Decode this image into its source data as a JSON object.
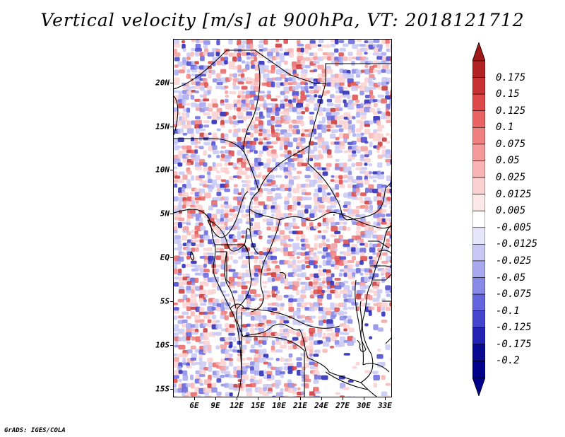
{
  "title": "Vertical velocity [m/s] at 900hPa, VT: 2018121712",
  "footer": "GrADS: IGES/COLA",
  "map": {
    "region": "Central Africa",
    "lon_range_deg": [
      3,
      34
    ],
    "lat_range_deg": [
      -16,
      25
    ],
    "lat_labels": [
      "20N",
      "15N",
      "10N",
      "5N",
      "EQ",
      "5S",
      "10S",
      "15S"
    ],
    "lat_values": [
      20,
      15,
      10,
      5,
      0,
      -5,
      -10,
      -15
    ],
    "lon_labels": [
      "6E",
      "9E",
      "12E",
      "15E",
      "18E",
      "21E",
      "24E",
      "27E",
      "30E",
      "33E"
    ],
    "lon_values": [
      6,
      9,
      12,
      15,
      18,
      21,
      24,
      27,
      30,
      33
    ],
    "field": "vertical velocity",
    "units": "m/s",
    "level": "900hPa",
    "valid_time": "2018121712"
  },
  "colorbar": {
    "labels": [
      "0.175",
      "0.15",
      "0.125",
      "0.1",
      "0.075",
      "0.05",
      "0.025",
      "0.0125",
      "0.005",
      "-0.005",
      "-0.0125",
      "-0.025",
      "-0.05",
      "-0.075",
      "-0.1",
      "-0.125",
      "-0.175",
      "-0.2"
    ],
    "colors": [
      "#b22222",
      "#c83232",
      "#dd4848",
      "#e86464",
      "#ee8080",
      "#f49a9a",
      "#f8b4b4",
      "#fbd0d0",
      "#fde8e8",
      "#ffffff",
      "#e6e6fa",
      "#c8c8f4",
      "#a8a8ee",
      "#8888e6",
      "#6464dc",
      "#4444cc",
      "#2222b4",
      "#0a0a90",
      "#00008b"
    ],
    "over_color": "#a01818",
    "under_color": "#00008b"
  }
}
